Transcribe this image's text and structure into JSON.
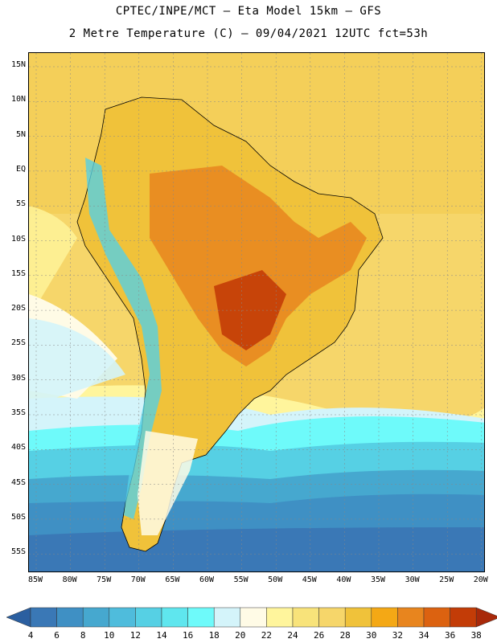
{
  "header": {
    "line1": "CPTEC/INPE/MCT –  Eta Model 15km – GFS",
    "line2": "2 Metre Temperature (C) – 09/04/2021 12UTC fct=53h"
  },
  "map": {
    "lat_labels": [
      "15N",
      "10N",
      "5N",
      "EQ",
      "5S",
      "10S",
      "15S",
      "20S",
      "25S",
      "30S",
      "35S",
      "40S",
      "45S",
      "50S",
      "55S"
    ],
    "lon_labels": [
      "85W",
      "80W",
      "75W",
      "70W",
      "65W",
      "60W",
      "55W",
      "50W",
      "45W",
      "40W",
      "35W",
      "30W",
      "25W",
      "20W"
    ]
  },
  "colorbar": {
    "labels": [
      "4",
      "6",
      "8",
      "10",
      "12",
      "14",
      "16",
      "18",
      "20",
      "22",
      "24",
      "26",
      "28",
      "30",
      "32",
      "34",
      "36",
      "38"
    ],
    "colors": [
      "#2b5fa0",
      "#3a78b6",
      "#3f90c4",
      "#46a8cf",
      "#4fbcdc",
      "#56d0e4",
      "#5fe6ee",
      "#6efafa",
      "#d4f4fa",
      "#fffbe6",
      "#fff59c",
      "#f8e37a",
      "#f6d66a",
      "#f0c23a",
      "#f4a815",
      "#e8851e",
      "#dc6210",
      "#c33c07",
      "#a8290a"
    ]
  }
}
